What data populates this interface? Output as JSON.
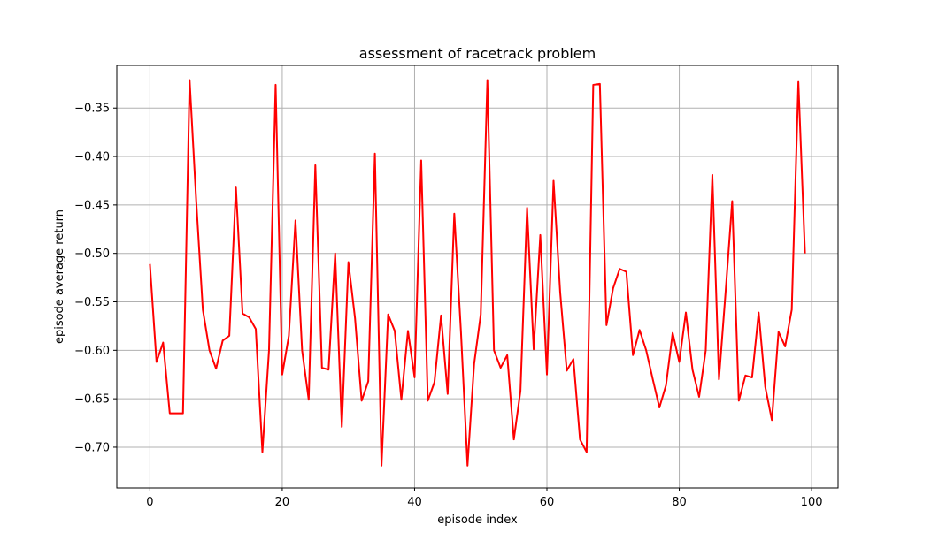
{
  "chart_data": {
    "type": "line",
    "title": "assessment of racetrack problem",
    "xlabel": "episode index",
    "ylabel": "episode average return",
    "xlim": [
      -5,
      104
    ],
    "ylim": [
      -0.742,
      -0.306
    ],
    "grid": true,
    "x_ticks": [
      0,
      20,
      40,
      60,
      80,
      100
    ],
    "y_ticks": [
      -0.7,
      -0.65,
      -0.6,
      -0.55,
      -0.5,
      -0.45,
      -0.4,
      -0.35
    ],
    "x_tick_labels": [
      "0",
      "20",
      "40",
      "60",
      "80",
      "100"
    ],
    "y_tick_labels": [
      "−0.70",
      "−0.65",
      "−0.60",
      "−0.55",
      "−0.50",
      "−0.45",
      "−0.40",
      "−0.35"
    ],
    "series": [
      {
        "color": "#ff0000",
        "x": [
          0,
          1,
          2,
          3,
          4,
          5,
          6,
          7,
          8,
          9,
          10,
          11,
          12,
          13,
          14,
          15,
          16,
          17,
          18,
          19,
          20,
          21,
          22,
          23,
          24,
          25,
          26,
          27,
          28,
          29,
          30,
          31,
          32,
          33,
          34,
          35,
          36,
          37,
          38,
          39,
          40,
          41,
          42,
          43,
          44,
          45,
          46,
          47,
          48,
          49,
          50,
          51,
          52,
          53,
          54,
          55,
          56,
          57,
          58,
          59,
          60,
          61,
          62,
          63,
          64,
          65,
          66,
          67,
          68,
          69,
          70,
          71,
          72,
          73,
          74,
          75,
          76,
          77,
          78,
          79,
          80,
          81,
          82,
          83,
          84,
          85,
          86,
          87,
          88,
          89,
          90,
          91,
          92,
          93,
          94,
          95,
          96,
          97,
          98,
          99
        ],
        "values": [
          -0.511,
          -0.612,
          -0.592,
          -0.665,
          -0.665,
          -0.665,
          -0.321,
          -0.446,
          -0.558,
          -0.6,
          -0.619,
          -0.59,
          -0.585,
          -0.432,
          -0.562,
          -0.566,
          -0.578,
          -0.705,
          -0.6,
          -0.326,
          -0.625,
          -0.585,
          -0.466,
          -0.6,
          -0.651,
          -0.409,
          -0.618,
          -0.62,
          -0.5,
          -0.679,
          -0.509,
          -0.567,
          -0.652,
          -0.632,
          -0.397,
          -0.719,
          -0.563,
          -0.58,
          -0.651,
          -0.58,
          -0.628,
          -0.404,
          -0.652,
          -0.633,
          -0.564,
          -0.645,
          -0.459,
          -0.58,
          -0.719,
          -0.614,
          -0.563,
          -0.321,
          -0.6,
          -0.618,
          -0.605,
          -0.692,
          -0.642,
          -0.453,
          -0.599,
          -0.481,
          -0.625,
          -0.425,
          -0.54,
          -0.621,
          -0.609,
          -0.692,
          -0.705,
          -0.326,
          -0.325,
          -0.574,
          -0.536,
          -0.516,
          -0.519,
          -0.605,
          -0.579,
          -0.6,
          -0.63,
          -0.659,
          -0.636,
          -0.582,
          -0.612,
          -0.561,
          -0.62,
          -0.648,
          -0.6,
          -0.419,
          -0.63,
          -0.54,
          -0.446,
          -0.652,
          -0.626,
          -0.628,
          -0.561,
          -0.638,
          -0.672,
          -0.581,
          -0.596,
          -0.558,
          -0.323,
          -0.5
        ]
      }
    ]
  }
}
